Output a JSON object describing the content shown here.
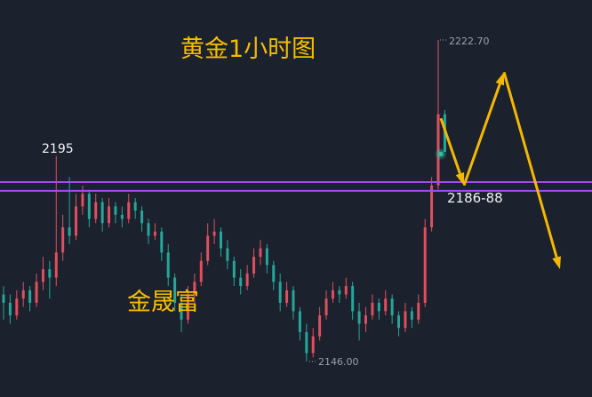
{
  "annotations": {
    "title": "黄金1小时图",
    "watermark": "金晟富",
    "peak_label": "2195",
    "zone_label": "2186-88",
    "high_label": "2222.70",
    "low_label": "2146.00"
  },
  "chart_data": {
    "type": "candlestick",
    "title": "黄金1小时图",
    "ylim": [
      2143,
      2232
    ],
    "grid": false,
    "colors": {
      "up": "#e04f5f",
      "down": "#26a69a",
      "background": "#1b212d",
      "level_line": "#a24cf0",
      "arrow": "#f5b800"
    },
    "horizontal_levels": [
      2188.8,
      2186.7
    ],
    "projection_path": [
      2204,
      2188,
      2215,
      2168
    ],
    "current_marker": 2195.5,
    "ohlc": [
      [
        2162,
        2164,
        2156,
        2160
      ],
      [
        2160,
        2162,
        2155,
        2157
      ],
      [
        2157,
        2163,
        2156,
        2161
      ],
      [
        2161,
        2165,
        2159,
        2163
      ],
      [
        2163,
        2164,
        2158,
        2160
      ],
      [
        2160,
        2167,
        2159,
        2165
      ],
      [
        2165,
        2171,
        2163,
        2168
      ],
      [
        2168,
        2170,
        2161,
        2166
      ],
      [
        2166,
        2195,
        2164,
        2172
      ],
      [
        2172,
        2181,
        2170,
        2178
      ],
      [
        2178,
        2190,
        2174,
        2176
      ],
      [
        2176,
        2186,
        2175,
        2183
      ],
      [
        2183,
        2188,
        2181,
        2186
      ],
      [
        2186,
        2187,
        2178,
        2180
      ],
      [
        2180,
        2186,
        2179,
        2184
      ],
      [
        2184,
        2185,
        2177,
        2179
      ],
      [
        2179,
        2185,
        2178,
        2183
      ],
      [
        2183,
        2184,
        2179,
        2181
      ],
      [
        2181,
        2183,
        2178,
        2180
      ],
      [
        2180,
        2186,
        2179,
        2184
      ],
      [
        2184,
        2185,
        2180,
        2182
      ],
      [
        2182,
        2183,
        2177,
        2179
      ],
      [
        2179,
        2180,
        2174,
        2176
      ],
      [
        2176,
        2179,
        2175,
        2177
      ],
      [
        2177,
        2178,
        2170,
        2172
      ],
      [
        2172,
        2174,
        2164,
        2166
      ],
      [
        2166,
        2167,
        2158,
        2160
      ],
      [
        2160,
        2162,
        2153,
        2156
      ],
      [
        2156,
        2164,
        2155,
        2162
      ],
      [
        2162,
        2167,
        2160,
        2165
      ],
      [
        2165,
        2172,
        2164,
        2170
      ],
      [
        2170,
        2179,
        2169,
        2176
      ],
      [
        2176,
        2180,
        2174,
        2177
      ],
      [
        2177,
        2178,
        2171,
        2173
      ],
      [
        2173,
        2175,
        2168,
        2170
      ],
      [
        2170,
        2171,
        2164,
        2166
      ],
      [
        2166,
        2168,
        2162,
        2164
      ],
      [
        2164,
        2169,
        2163,
        2167
      ],
      [
        2167,
        2173,
        2166,
        2171
      ],
      [
        2171,
        2175,
        2169,
        2173
      ],
      [
        2173,
        2174,
        2167,
        2169
      ],
      [
        2169,
        2170,
        2163,
        2165
      ],
      [
        2165,
        2167,
        2158,
        2160
      ],
      [
        2160,
        2165,
        2159,
        2163
      ],
      [
        2163,
        2164,
        2156,
        2158
      ],
      [
        2158,
        2159,
        2151,
        2153
      ],
      [
        2153,
        2155,
        2146,
        2148
      ],
      [
        2148,
        2154,
        2147,
        2152
      ],
      [
        2152,
        2159,
        2151,
        2157
      ],
      [
        2157,
        2163,
        2156,
        2161
      ],
      [
        2161,
        2165,
        2160,
        2163
      ],
      [
        2163,
        2164,
        2160,
        2162
      ],
      [
        2162,
        2166,
        2161,
        2164
      ],
      [
        2164,
        2165,
        2156,
        2158
      ],
      [
        2158,
        2160,
        2151,
        2155
      ],
      [
        2155,
        2159,
        2153,
        2157
      ],
      [
        2157,
        2162,
        2156,
        2160
      ],
      [
        2160,
        2161,
        2156,
        2158
      ],
      [
        2158,
        2163,
        2157,
        2161
      ],
      [
        2161,
        2162,
        2155,
        2157
      ],
      [
        2157,
        2158,
        2152,
        2154
      ],
      [
        2154,
        2160,
        2153,
        2158
      ],
      [
        2158,
        2159,
        2154,
        2156
      ],
      [
        2156,
        2162,
        2155,
        2160
      ],
      [
        2160,
        2180,
        2159,
        2178
      ],
      [
        2178,
        2190,
        2177,
        2188
      ],
      [
        2188,
        2222.7,
        2187,
        2205
      ],
      [
        2205,
        2206,
        2196,
        2196
      ]
    ]
  }
}
